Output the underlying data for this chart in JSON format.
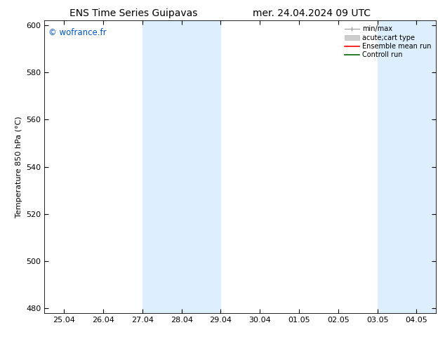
{
  "title_left": "ENS Time Series Guipavas",
  "title_right": "mer. 24.04.2024 09 UTC",
  "ylabel": "Temperature 850 hPa (°C)",
  "yticks": [
    480,
    500,
    520,
    540,
    560,
    580,
    600
  ],
  "ylim": [
    478,
    602
  ],
  "xtick_labels": [
    "25.04",
    "26.04",
    "27.04",
    "28.04",
    "29.04",
    "30.04",
    "01.05",
    "02.05",
    "03.05",
    "04.05"
  ],
  "watermark": "© wofrance.fr",
  "watermark_color": "#0055cc",
  "background_color": "#ffffff",
  "shaded_bands": [
    {
      "xstart": 2.0,
      "xend": 4.0
    },
    {
      "xstart": 8.0,
      "xend": 10.0
    }
  ],
  "band_color": "#ddeeff",
  "legend_entries": [
    {
      "label": "min/max",
      "color": "#aaaaaa",
      "lw": 1.0
    },
    {
      "label": "acute;cart type",
      "color": "#cccccc",
      "lw": 6
    },
    {
      "label": "Ensemble mean run",
      "color": "#ff0000",
      "lw": 1.5
    },
    {
      "label": "Controll run",
      "color": "#008000",
      "lw": 1.5
    }
  ],
  "title_fontsize": 10,
  "axis_fontsize": 8,
  "tick_fontsize": 8,
  "legend_fontsize": 7
}
